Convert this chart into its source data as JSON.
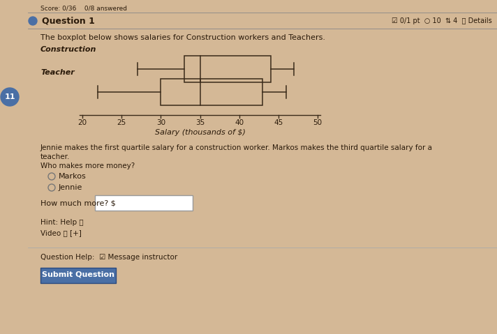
{
  "bg_color": "#d4b896",
  "score_text": "Score: 0/36    0/8 answered",
  "question_label": "Question 1",
  "question_meta": "☑ 0/1 pt  ○ 10  ⇅ 4  ⓘ Details",
  "intro_text": "The boxplot below shows salaries for Construction workers and Teachers.",
  "construction": {
    "label": "Construction",
    "whisker_min": 27,
    "q1": 33,
    "median": 35,
    "q3": 44,
    "whisker_max": 47
  },
  "teacher": {
    "label": "Teacher",
    "whisker_min": 22,
    "q1": 30,
    "median": 35,
    "q3": 43,
    "whisker_max": 46
  },
  "xlabel": "Salary (thousands of $)",
  "xticks": [
    20,
    25,
    30,
    35,
    40,
    45,
    50
  ],
  "body_text_1": "Jennie makes the first quartile salary for a construction worker. Markos makes the third quartile salary for a",
  "body_text_2": "teacher.",
  "body_text_3": "Who makes more money?",
  "radio_1": "Markos",
  "radio_2": "Jennie",
  "how_much_label": "How much more? $",
  "hint_text": "Hint: Help ⓘ",
  "video_text": "Video ⓘ [+]",
  "q_help_text": "Question Help:  ☑ Message instructor",
  "submit_text": "Submit Question",
  "sidebar_number": "11",
  "sidebar_color": "#4a6fa5",
  "submit_color": "#4a6fa5",
  "text_color": "#2a1a0a",
  "line_color": "#888888",
  "box_color": "#3a2a1a"
}
